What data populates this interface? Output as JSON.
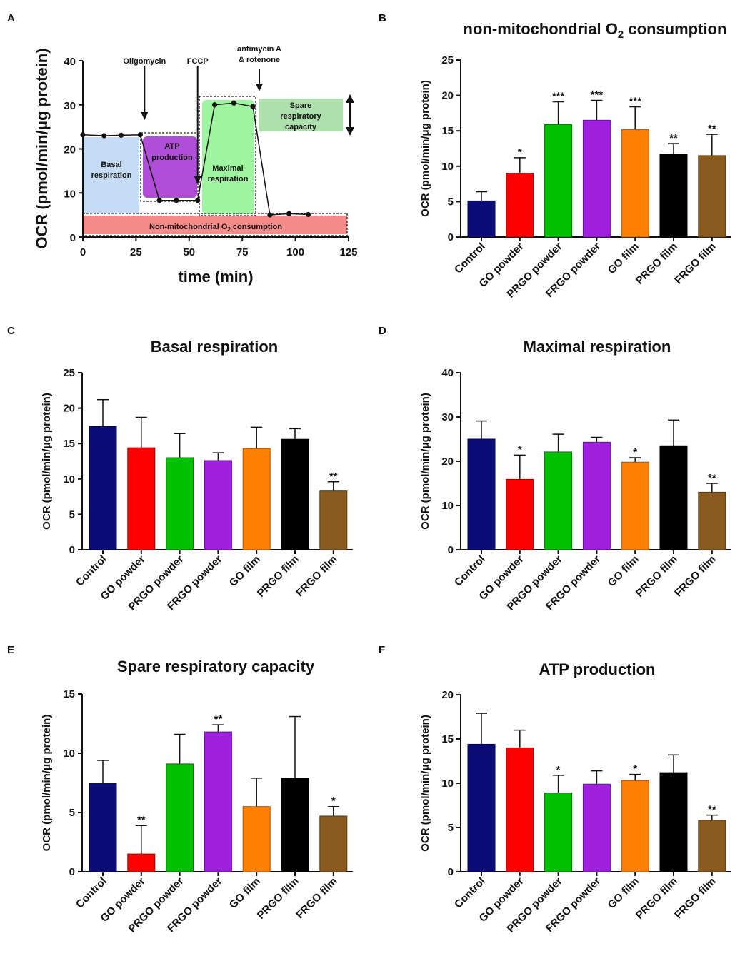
{
  "chart_data": [
    {
      "panel": "A",
      "type": "line",
      "xlabel": "time (min)",
      "ylabel": "OCR (pmol/min/μg protein)",
      "xlim": [
        0,
        125
      ],
      "ylim": [
        0,
        40
      ],
      "xticks": [
        "0",
        "25",
        "50",
        "75",
        "100",
        "125"
      ],
      "yticks": [
        "0",
        "10",
        "20",
        "30",
        "40"
      ],
      "series": [
        {
          "name": "OCR",
          "x": [
            0,
            10,
            18,
            27,
            36,
            44,
            54,
            62,
            71,
            80,
            88,
            97,
            106
          ],
          "y": [
            23.2,
            23.0,
            23.1,
            23.2,
            8.3,
            8.3,
            8.3,
            30.0,
            30.4,
            29.6,
            5.0,
            5.3,
            5.1
          ]
        }
      ],
      "injections": [
        {
          "label": "Oligomycin",
          "x": 29
        },
        {
          "label": "FCCP",
          "x": 54
        },
        {
          "label_line1": "antimycin A",
          "label_line2": "& rotenone",
          "x": 83
        }
      ],
      "regions": {
        "basal": {
          "line1": "Basal",
          "line2": "respiration",
          "color": "#c6dcf4"
        },
        "atp": {
          "line1": "ATP",
          "line2": "production",
          "color": "#b04ed8"
        },
        "maximal": {
          "line1": "Maximal",
          "line2": "respiration",
          "color": "#9ff59f"
        },
        "spare": {
          "line1": "Spare",
          "line2": "respiratory",
          "line3": "capacity",
          "color": "#aee0ae"
        },
        "nonmito": {
          "text_pre": "Non-mitochondrial O",
          "sub": "2",
          "text_post": " consumption",
          "color": "#f58a8a"
        }
      }
    },
    {
      "panel": "B",
      "type": "bar",
      "title_pre": "non-mitochondrial O",
      "title_sub": "2",
      "title_post": " consumption",
      "ylabel": "OCR (pmol/min/μg protein)",
      "ylim": [
        0,
        25
      ],
      "yticks": [
        "0",
        "5",
        "10",
        "15",
        "20",
        "25"
      ],
      "categories": [
        "Control",
        "GO powder",
        "PRGO powder",
        "FRGO powder",
        "GO film",
        "PRGO film",
        "FRGO film"
      ],
      "values": [
        5.1,
        9.0,
        15.9,
        16.5,
        15.2,
        11.7,
        11.5
      ],
      "errors": [
        1.3,
        2.2,
        3.2,
        2.8,
        3.2,
        1.5,
        3.0
      ],
      "significance": [
        "",
        "*",
        "***",
        "***",
        "***",
        "**",
        "**"
      ]
    },
    {
      "panel": "C",
      "type": "bar",
      "title": "Basal respiration",
      "ylabel": "OCR (pmol/min/μg protein)",
      "ylim": [
        0,
        25
      ],
      "yticks": [
        "0",
        "5",
        "10",
        "15",
        "20",
        "25"
      ],
      "categories": [
        "Control",
        "GO powder",
        "PRGO powder",
        "FRGO powder",
        "GO film",
        "PRGO film",
        "FRGO film"
      ],
      "values": [
        17.4,
        14.4,
        13.0,
        12.6,
        14.3,
        15.6,
        8.3
      ],
      "errors": [
        3.8,
        4.3,
        3.4,
        1.1,
        3.0,
        1.5,
        1.3
      ],
      "significance": [
        "",
        "",
        "",
        "",
        "",
        "",
        "**"
      ]
    },
    {
      "panel": "D",
      "type": "bar",
      "title": "Maximal respiration",
      "ylabel": "OCR (pmol/min/μg protein)",
      "ylim": [
        0,
        40
      ],
      "yticks": [
        "0",
        "10",
        "20",
        "30",
        "40"
      ],
      "categories": [
        "Control",
        "GO powder",
        "PRGO powder",
        "FRGO powder",
        "GO film",
        "PRGO film",
        "FRGO film"
      ],
      "values": [
        25.0,
        15.9,
        22.1,
        24.3,
        19.8,
        23.5,
        13.0
      ],
      "errors": [
        4.1,
        5.5,
        4.0,
        1.1,
        1.0,
        5.8,
        2.0
      ],
      "significance": [
        "",
        "*",
        "",
        "",
        "*",
        "",
        "**"
      ]
    },
    {
      "panel": "E",
      "type": "bar",
      "title": "Spare respiratory capacity",
      "ylabel": "OCR (pmol/min/μg protein)",
      "ylim": [
        0,
        15
      ],
      "yticks": [
        "0",
        "5",
        "10",
        "15"
      ],
      "categories": [
        "Control",
        "GO powder",
        "PRGO powder",
        "FRGO powder",
        "GO film",
        "PRGO film",
        "FRGO film"
      ],
      "values": [
        7.5,
        1.5,
        9.1,
        11.8,
        5.5,
        7.9,
        4.7
      ],
      "errors": [
        1.9,
        2.4,
        2.5,
        0.6,
        2.4,
        5.2,
        0.8
      ],
      "significance": [
        "",
        "**",
        "",
        "**",
        "",
        "",
        "*"
      ]
    },
    {
      "panel": "F",
      "type": "bar",
      "title": "ATP production",
      "ylabel": "OCR (pmol/min/μg protein)",
      "ylim": [
        0,
        20
      ],
      "yticks": [
        "0",
        "5",
        "10",
        "15",
        "20"
      ],
      "categories": [
        "Control",
        "GO powder",
        "PRGO powder",
        "FRGO powder",
        "GO film",
        "PRGO film",
        "FRGO film"
      ],
      "values": [
        14.4,
        14.0,
        8.9,
        9.9,
        10.3,
        11.2,
        5.8
      ],
      "errors": [
        3.5,
        2.0,
        2.0,
        1.5,
        0.7,
        2.0,
        0.6
      ],
      "significance": [
        "",
        "",
        "*",
        "",
        "*",
        "",
        "**"
      ]
    }
  ],
  "bar_colors": [
    "#0b0b7a",
    "#ff0000",
    "#00c000",
    "#a020e0",
    "#ff8000",
    "#000000",
    "#8b5a1e"
  ],
  "bar_edge_colors": [
    "#000050",
    "#a00000",
    "#007000",
    "#6010a0",
    "#b05000",
    "#000000",
    "#5a3a10"
  ]
}
